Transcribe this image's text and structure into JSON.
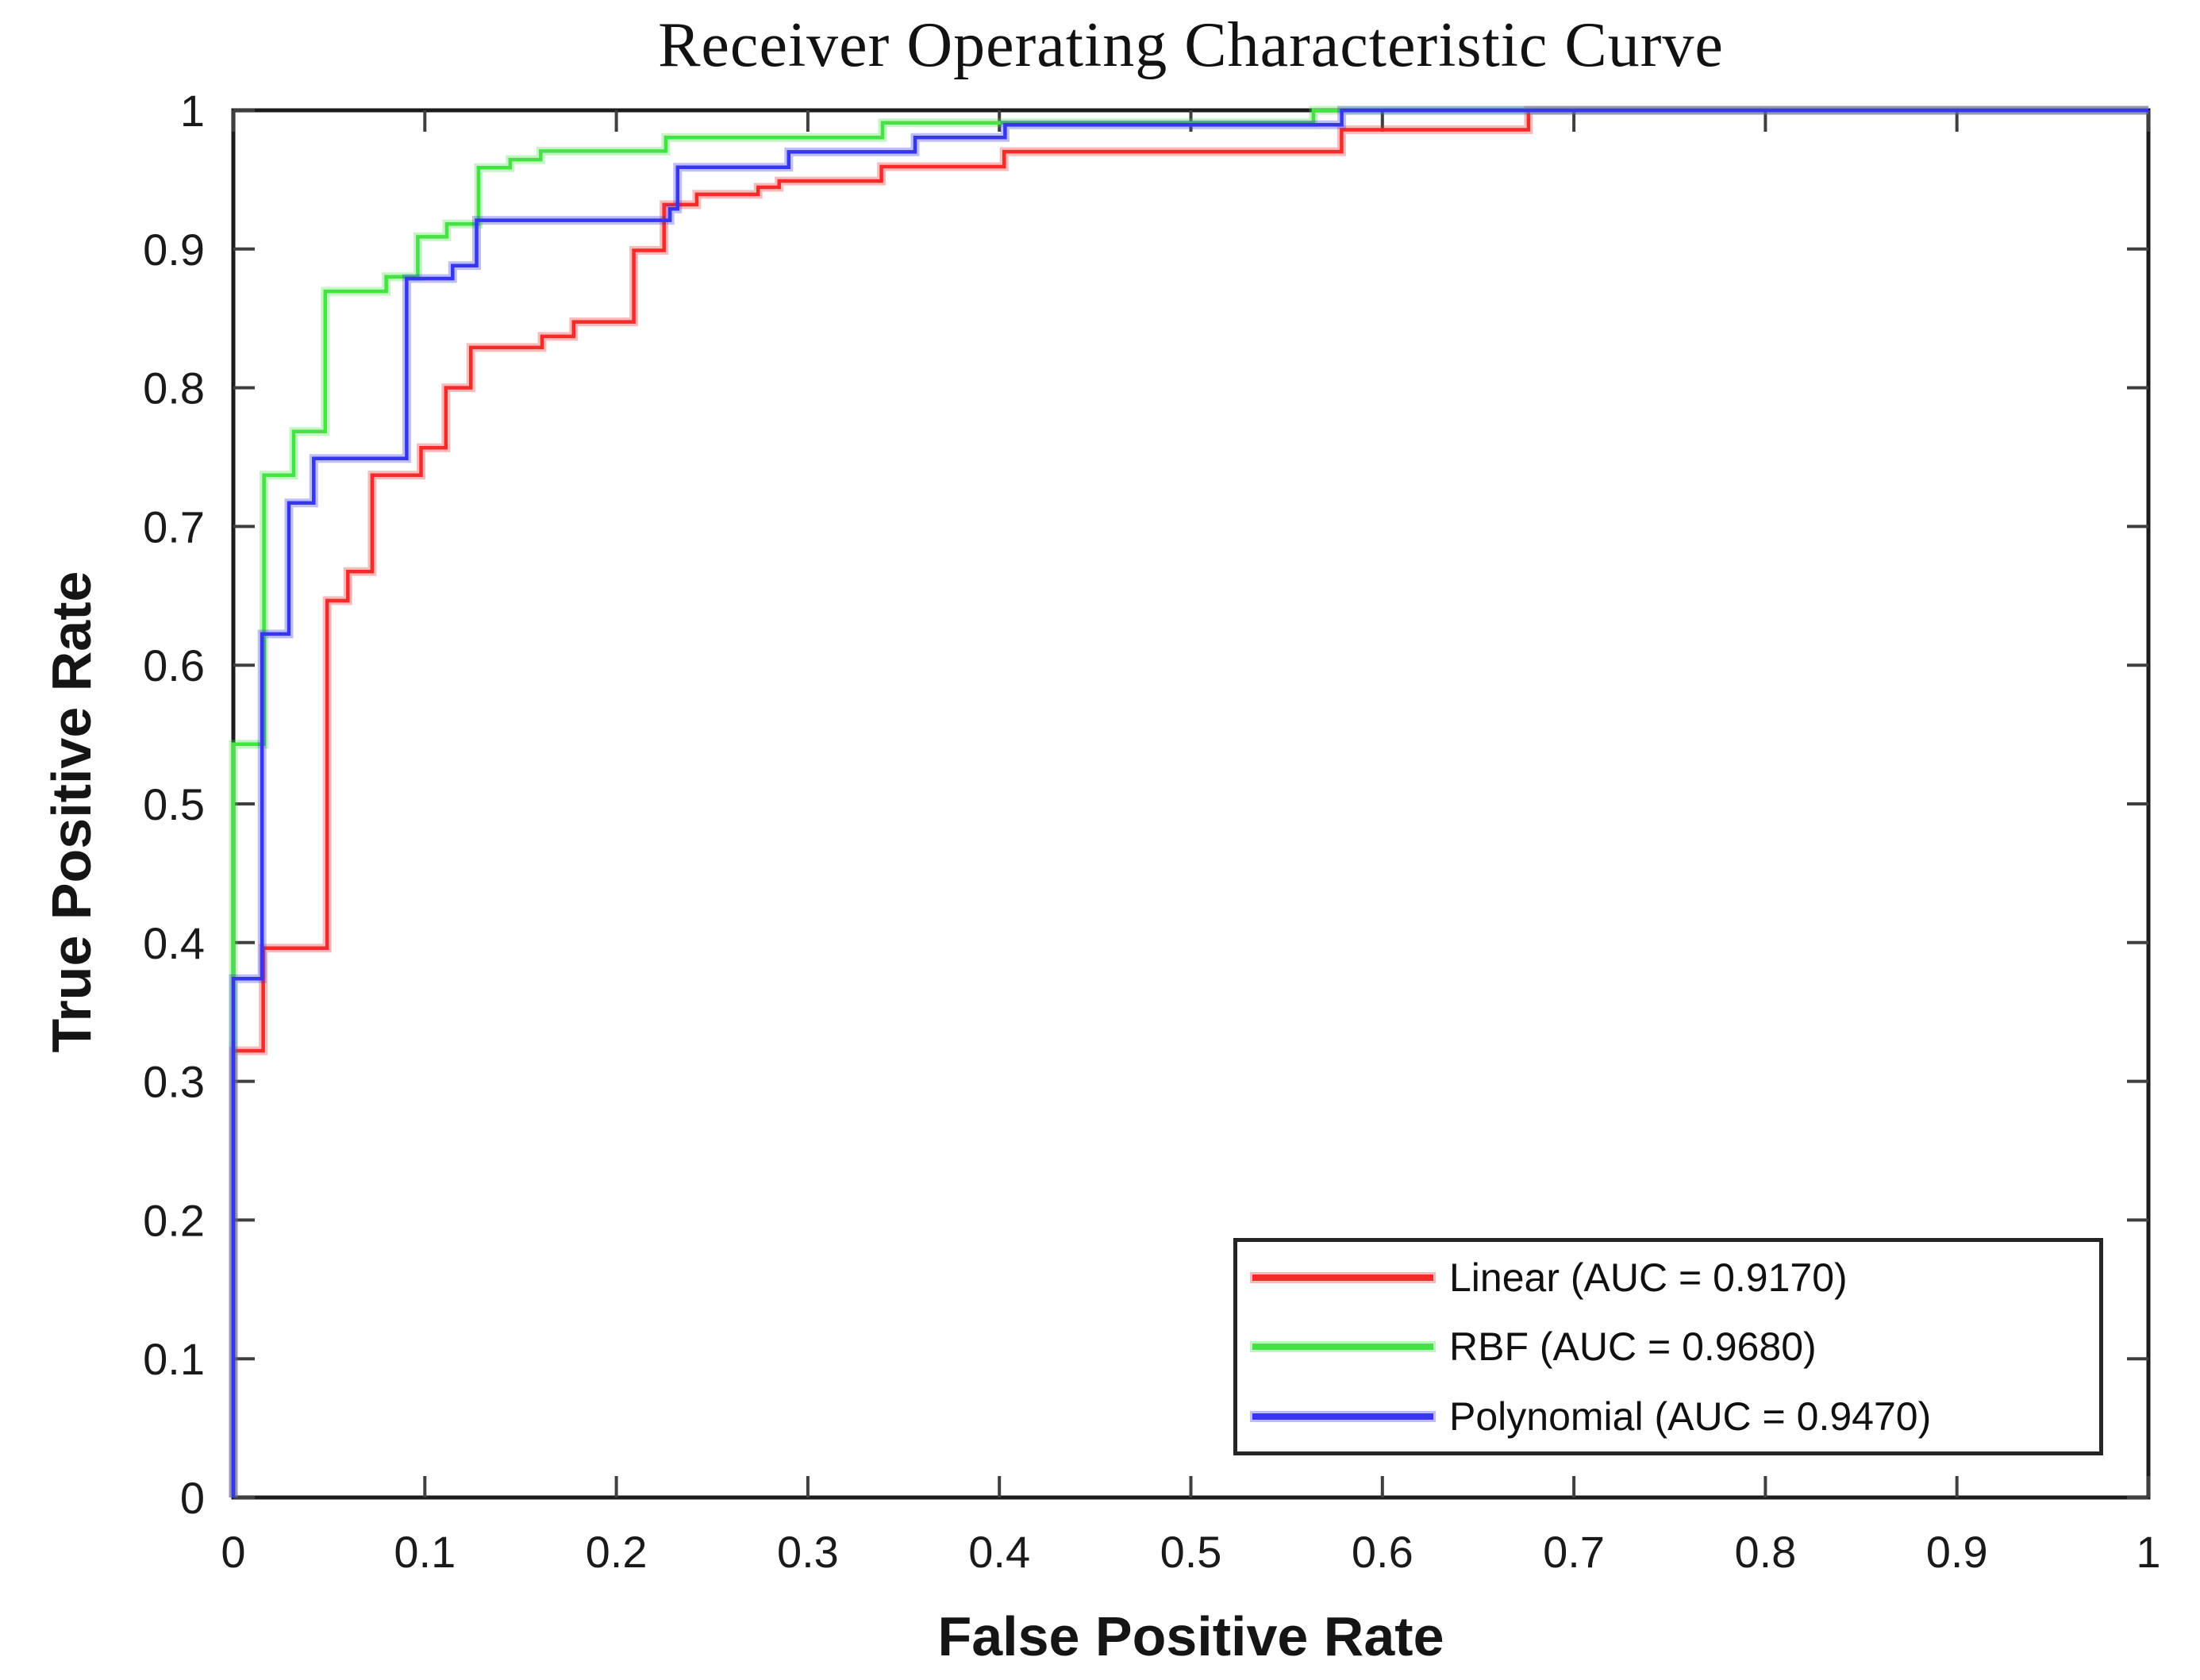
{
  "title": "Receiver Operating Characteristic Curve",
  "axes": {
    "x_label": "False Positive Rate",
    "y_label": "True Positive Rate",
    "x_tick_labels": [
      "0",
      "0.1",
      "0.2",
      "0.3",
      "0.4",
      "0.5",
      "0.6",
      "0.7",
      "0.8",
      "0.9",
      "1"
    ],
    "y_tick_labels": [
      "0",
      "0.1",
      "0.2",
      "0.3",
      "0.4",
      "0.5",
      "0.6",
      "0.7",
      "0.8",
      "0.9",
      "1"
    ]
  },
  "colors": {
    "background": "#ffffff",
    "spine": "#1b1b1b",
    "tick": "#3f3f3f",
    "legend_border": "#252525",
    "linear_red": "#f72a2a",
    "rbf_green": "#44e244",
    "polynomial_blue": "#3636ee"
  },
  "chart_data": {
    "type": "line",
    "subtype": "roc-step-curves",
    "title": "Receiver Operating Characteristic Curve",
    "xlabel": "False Positive Rate",
    "ylabel": "True Positive Rate",
    "xlim": [
      0,
      1
    ],
    "ylim": [
      0,
      1
    ],
    "x_ticks": [
      0,
      0.1,
      0.2,
      0.3,
      0.4,
      0.5,
      0.6,
      0.7,
      0.8,
      0.9,
      1
    ],
    "y_ticks": [
      0,
      0.1,
      0.2,
      0.3,
      0.4,
      0.5,
      0.6,
      0.7,
      0.8,
      0.9,
      1
    ],
    "grid": false,
    "legend_position": "lower right",
    "series": [
      {
        "name": "Linear",
        "auc": "0.9170",
        "legend_label": "Linear (AUC = 0.9170)",
        "color": "#f72a2a",
        "points": [
          [
            0,
            0
          ],
          [
            0,
            0.322
          ],
          [
            0.0156,
            0.322
          ],
          [
            0.0156,
            0.396
          ],
          [
            0.049,
            0.396
          ],
          [
            0.049,
            0.6465
          ],
          [
            0.0598,
            0.6465
          ],
          [
            0.0598,
            0.6675
          ],
          [
            0.0725,
            0.6675
          ],
          [
            0.0725,
            0.737
          ],
          [
            0.098,
            0.737
          ],
          [
            0.098,
            0.7567
          ],
          [
            0.111,
            0.7567
          ],
          [
            0.111,
            0.8
          ],
          [
            0.124,
            0.8
          ],
          [
            0.124,
            0.829
          ],
          [
            0.1612,
            0.829
          ],
          [
            0.1612,
            0.837
          ],
          [
            0.1777,
            0.837
          ],
          [
            0.1777,
            0.8475
          ],
          [
            0.2091,
            0.8475
          ],
          [
            0.2091,
            0.899
          ],
          [
            0.2249,
            0.899
          ],
          [
            0.2249,
            0.932
          ],
          [
            0.242,
            0.932
          ],
          [
            0.242,
            0.9394
          ],
          [
            0.274,
            0.9394
          ],
          [
            0.274,
            0.9445
          ],
          [
            0.285,
            0.9445
          ],
          [
            0.285,
            0.949
          ],
          [
            0.3384,
            0.949
          ],
          [
            0.3384,
            0.9594
          ],
          [
            0.4025,
            0.9594
          ],
          [
            0.4025,
            0.9702
          ],
          [
            0.5787,
            0.9702
          ],
          [
            0.5787,
            0.986
          ],
          [
            0.6763,
            0.986
          ],
          [
            0.6763,
            1.0
          ],
          [
            1,
            1
          ]
        ]
      },
      {
        "name": "RBF",
        "auc": "0.9680",
        "legend_label": "RBF (AUC = 0.9680)",
        "color": "#44e244",
        "points": [
          [
            0,
            0
          ],
          [
            0,
            0.543
          ],
          [
            0.016,
            0.543
          ],
          [
            0.016,
            0.737
          ],
          [
            0.0315,
            0.737
          ],
          [
            0.0315,
            0.7685
          ],
          [
            0.048,
            0.7685
          ],
          [
            0.048,
            0.8695
          ],
          [
            0.0798,
            0.8695
          ],
          [
            0.0798,
            0.88
          ],
          [
            0.0963,
            0.88
          ],
          [
            0.0963,
            0.9088
          ],
          [
            0.1115,
            0.9088
          ],
          [
            0.1115,
            0.918
          ],
          [
            0.128,
            0.918
          ],
          [
            0.128,
            0.9587
          ],
          [
            0.1446,
            0.9587
          ],
          [
            0.1446,
            0.9645
          ],
          [
            0.1605,
            0.9645
          ],
          [
            0.1605,
            0.9706
          ],
          [
            0.2258,
            0.9706
          ],
          [
            0.2258,
            0.9804
          ],
          [
            0.339,
            0.9804
          ],
          [
            0.339,
            0.991
          ],
          [
            0.564,
            0.991
          ],
          [
            0.564,
            1.0
          ],
          [
            1,
            1
          ]
        ]
      },
      {
        "name": "Polynomial",
        "auc": "0.9470",
        "legend_label": "Polynomial (AUC = 0.9470)",
        "color": "#3636ee",
        "points": [
          [
            0,
            0
          ],
          [
            0,
            0.374
          ],
          [
            0.015,
            0.374
          ],
          [
            0.015,
            0.6225
          ],
          [
            0.029,
            0.6225
          ],
          [
            0.029,
            0.717
          ],
          [
            0.042,
            0.717
          ],
          [
            0.042,
            0.749
          ],
          [
            0.0905,
            0.749
          ],
          [
            0.0905,
            0.8787
          ],
          [
            0.1145,
            0.8787
          ],
          [
            0.1145,
            0.888
          ],
          [
            0.127,
            0.888
          ],
          [
            0.127,
            0.9207
          ],
          [
            0.228,
            0.9207
          ],
          [
            0.228,
            0.9289
          ],
          [
            0.232,
            0.9289
          ],
          [
            0.232,
            0.959
          ],
          [
            0.29,
            0.959
          ],
          [
            0.29,
            0.97
          ],
          [
            0.356,
            0.97
          ],
          [
            0.356,
            0.9804
          ],
          [
            0.403,
            0.9804
          ],
          [
            0.403,
            0.9896
          ],
          [
            0.5788,
            0.9896
          ],
          [
            0.5788,
            1.0
          ],
          [
            1,
            1
          ]
        ]
      }
    ]
  }
}
